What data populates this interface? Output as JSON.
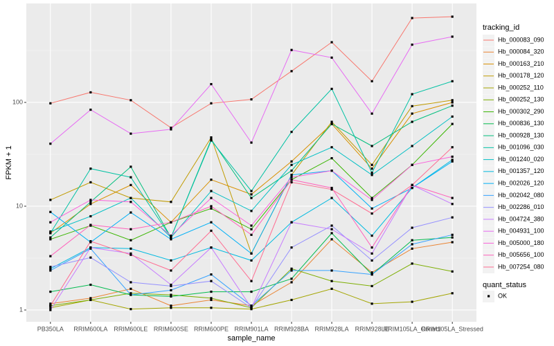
{
  "chart_data": {
    "type": "line",
    "x_label": "sample_name",
    "y_label": "FPKM + 1",
    "legend_title": "tracking_id",
    "shape_legend": {
      "title": "quant_status",
      "entries": [
        "OK"
      ]
    },
    "log_y": true,
    "grid": true,
    "categories": [
      "PB350LA",
      "RRIM600LA",
      "RRIM600LE",
      "RRIM600SE",
      "RRIM600PE",
      "RRIM901LA",
      "RRIM928BA",
      "RRIM928LA",
      "RRIM928LE",
      "RRIM105LA_Control",
      "RRIM105LA_Stressed"
    ],
    "ylim": [
      0.77,
      898
    ],
    "yticks": [
      1,
      10,
      100
    ],
    "series": [
      {
        "name": "Hb_000083_090",
        "color": "#F8766D",
        "values": [
          98,
          125,
          105,
          57,
          98,
          107,
          200,
          380,
          160,
          650,
          670
        ]
      },
      {
        "name": "Hb_000084_320",
        "color": "#EA8331",
        "values": [
          1.15,
          1.3,
          1.6,
          1.1,
          1.25,
          1.1,
          1.85,
          4.8,
          2.3,
          3.9,
          4.5
        ]
      },
      {
        "name": "Hb_000163_210",
        "color": "#D89000",
        "values": [
          5.5,
          10.5,
          16,
          7,
          18,
          13,
          27,
          62,
          23,
          78,
          100
        ]
      },
      {
        "name": "Hb_000178_120",
        "color": "#C09B00",
        "values": [
          11.5,
          17,
          12,
          11,
          46,
          3.5,
          20,
          65,
          25,
          92,
          105
        ]
      },
      {
        "name": "Hb_000252_110",
        "color": "#A3A500",
        "values": [
          1.05,
          1.25,
          1.02,
          1.05,
          1.05,
          1.02,
          1.25,
          1.6,
          1.15,
          1.2,
          1.45
        ]
      },
      {
        "name": "Hb_000252_130",
        "color": "#7CAE00",
        "values": [
          1.1,
          1.25,
          1.45,
          1.4,
          1.3,
          1.05,
          2.5,
          1.9,
          1.7,
          2.8,
          2.35
        ]
      },
      {
        "name": "Hb_000302_290",
        "color": "#39B600",
        "values": [
          4.8,
          6.5,
          4.7,
          7,
          9.5,
          6,
          18,
          29,
          12,
          25,
          62
        ]
      },
      {
        "name": "Hb_000836_130",
        "color": "#00BB4E",
        "values": [
          1.5,
          1.75,
          1.4,
          1.35,
          1.5,
          1.5,
          2,
          5.5,
          2.2,
          4.7,
          5
        ]
      },
      {
        "name": "Hb_000928_130",
        "color": "#00BF7D",
        "values": [
          5,
          11,
          24,
          5,
          44,
          12,
          22,
          62,
          38,
          65,
          93
        ]
      },
      {
        "name": "Hb_001096_030",
        "color": "#00C1A3",
        "values": [
          5.5,
          23,
          19,
          5,
          43,
          14,
          52,
          135,
          21,
          120,
          160
        ]
      },
      {
        "name": "Hb_001240_020",
        "color": "#00BFC4",
        "values": [
          5.7,
          8,
          12,
          5,
          14,
          9,
          25,
          37,
          20,
          38,
          73
        ]
      },
      {
        "name": "Hb_001357_120",
        "color": "#00BAE0",
        "values": [
          2.5,
          4,
          3.9,
          3,
          4,
          3,
          7,
          12,
          5.2,
          15,
          28
        ]
      },
      {
        "name": "Hb_002026_120",
        "color": "#00B0F6",
        "values": [
          8.8,
          4.5,
          8.7,
          4.8,
          7,
          3.5,
          20,
          22,
          9.5,
          15,
          27
        ]
      },
      {
        "name": "Hb_002042_080",
        "color": "#35A2FF",
        "values": [
          2.4,
          3.9,
          1.4,
          1.55,
          2.2,
          1.1,
          2.4,
          2.4,
          2.2,
          4.3,
          5.3
        ]
      },
      {
        "name": "Hb_002286_010",
        "color": "#9590FF",
        "values": [
          2.6,
          3.2,
          1.85,
          1.7,
          1.9,
          1.05,
          4,
          6.5,
          3,
          6.2,
          7.8
        ]
      },
      {
        "name": "Hb_004724_380",
        "color": "#C77CFF",
        "values": [
          1.0,
          4,
          3.5,
          1.75,
          4,
          1.05,
          7,
          6,
          3.5,
          16,
          10.5
        ]
      },
      {
        "name": "Hb_004931_100",
        "color": "#E76BF3",
        "values": [
          40,
          85,
          50,
          55,
          150,
          41,
          320,
          270,
          78,
          360,
          430
        ]
      },
      {
        "name": "Hb_005000_180",
        "color": "#FA62DB",
        "values": [
          7,
          11.5,
          11,
          5.2,
          12,
          6.5,
          19,
          22,
          11.5,
          25,
          30
        ]
      },
      {
        "name": "Hb_005656_100",
        "color": "#FF62BC",
        "values": [
          3.3,
          6.6,
          6,
          7,
          10,
          5.3,
          18,
          15,
          4,
          16,
          12
        ]
      },
      {
        "name": "Hb_007254_080",
        "color": "#FF6C91",
        "values": [
          1.1,
          4.6,
          3.4,
          2.4,
          5.8,
          1.9,
          17,
          14.5,
          8.5,
          16,
          37
        ]
      }
    ]
  }
}
